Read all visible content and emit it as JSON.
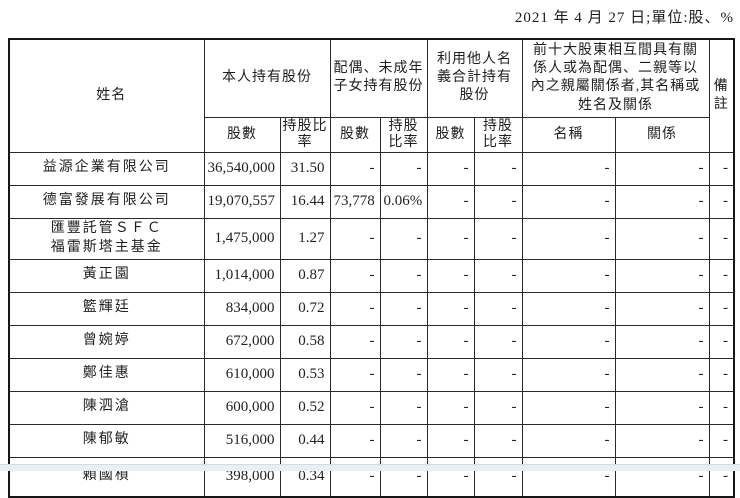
{
  "page": {
    "date_note": "2021 年 4 月 27 日;單位:股、%"
  },
  "table": {
    "headers": {
      "name": "姓名",
      "own_group": "本人持有股份",
      "spouse_group": "配偶、未成年子女持有股份",
      "nominee_group": "利用他人名義合計持有股份",
      "top10_group": "前十大股東相互間具有關係人或為配偶、二親等以內之親屬關係者,其名稱或姓名及關係",
      "remark": "備註",
      "shares": "股數",
      "ratio": "持股比率",
      "rel_name": "名稱",
      "rel_relation": "關係"
    },
    "rows": [
      {
        "name": "益源企業有限公司",
        "cells": [
          "36,540,000",
          "31.50",
          "-",
          "-",
          "-",
          "-",
          "-",
          "-",
          "-"
        ]
      },
      {
        "name": "德富發展有限公司",
        "cells": [
          "19,070,557",
          "16.44",
          "73,778",
          "0.06%",
          "-",
          "-",
          "-",
          "-",
          "-"
        ]
      },
      {
        "name": "匯豐託管ＳＦＣ\n福雷斯塔主基金",
        "cells": [
          "1,475,000",
          "1.27",
          "-",
          "-",
          "-",
          "-",
          "-",
          "-",
          "-"
        ]
      },
      {
        "name": "黃正園",
        "cells": [
          "1,014,000",
          "0.87",
          "-",
          "-",
          "-",
          "-",
          "-",
          "-",
          "-"
        ]
      },
      {
        "name": "籃輝廷",
        "cells": [
          "834,000",
          "0.72",
          "-",
          "-",
          "-",
          "-",
          "-",
          "-",
          "-"
        ]
      },
      {
        "name": "曾婉婷",
        "cells": [
          "672,000",
          "0.58",
          "-",
          "-",
          "-",
          "-",
          "-",
          "-",
          "-"
        ]
      },
      {
        "name": "鄭佳惠",
        "cells": [
          "610,000",
          "0.53",
          "-",
          "-",
          "-",
          "-",
          "-",
          "-",
          "-"
        ]
      },
      {
        "name": "陳泗滄",
        "cells": [
          "600,000",
          "0.52",
          "-",
          "-",
          "-",
          "-",
          "-",
          "-",
          "-"
        ]
      },
      {
        "name": "陳郁敏",
        "cells": [
          "516,000",
          "0.44",
          "-",
          "-",
          "-",
          "-",
          "-",
          "-",
          "-"
        ]
      },
      {
        "name": "賴國楨",
        "cells": [
          "398,000",
          "0.34",
          "-",
          "-",
          "-",
          "-",
          "-",
          "-",
          "-"
        ]
      }
    ]
  }
}
